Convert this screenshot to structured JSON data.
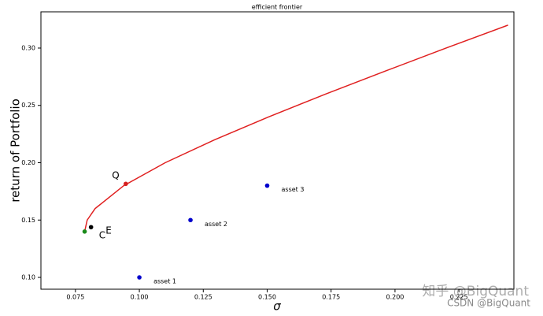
{
  "chart_data": {
    "type": "scatter",
    "title": "efficient frontier",
    "x_label": "σ",
    "y_label": "return of Portfolio",
    "xlim": [
      0.0615,
      0.2465
    ],
    "ylim": [
      0.0897,
      0.3316
    ],
    "xticks": [
      0.075,
      {
        "value": 0.1,
        "label": "0.100"
      },
      0.125,
      {
        "value": 0.15,
        "label": "0.150"
      },
      0.175,
      {
        "value": 0.2,
        "label": "0.200"
      },
      0.225
    ],
    "yticks": [
      {
        "value": 0.1,
        "label": "0.10"
      },
      0.15,
      {
        "value": 0.2,
        "label": "0.20"
      },
      0.25,
      {
        "value": 0.3,
        "label": "0.30"
      }
    ],
    "series": [
      {
        "style": "line",
        "color": "#e02020",
        "x": [
          0.0786,
          0.0796,
          0.0827,
          0.0939,
          0.1101,
          0.1294,
          0.1506,
          0.173,
          0.1963,
          0.22,
          0.2442
        ],
        "values": [
          0.14,
          0.15,
          0.16,
          0.18,
          0.2,
          0.22,
          0.24,
          0.26,
          0.28,
          0.3,
          0.32
        ]
      },
      {
        "style": "points",
        "color": "#0000cc",
        "x": [
          0.1,
          0.12,
          0.15
        ],
        "values": [
          0.1,
          0.15,
          0.18
        ],
        "labels": [
          "asset 1",
          "asset 2",
          "asset 3"
        ]
      },
      {
        "style": "points",
        "color": "#1a8a1a",
        "x": [
          0.0786
        ],
        "values": [
          0.14
        ]
      },
      {
        "style": "points",
        "color": "#000000",
        "x": [
          0.0811
        ],
        "values": [
          0.1438
        ]
      },
      {
        "style": "points",
        "color": "#d62020",
        "x": [
          0.0947
        ],
        "values": [
          0.1816
        ]
      }
    ],
    "annotations": [
      "Q",
      "C",
      "E"
    ],
    "watermark": [
      "知乎 @BigQuant",
      "CSDN @BigQuant"
    ]
  }
}
